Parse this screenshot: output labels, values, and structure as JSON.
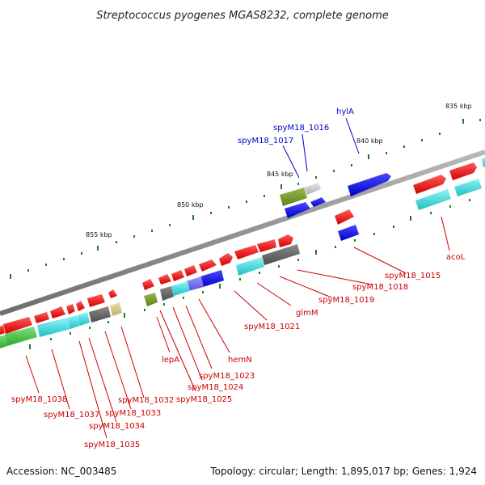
{
  "title": "Streptococcus pyogenes MGAS8232, complete genome",
  "footer": {
    "accession": "Accession: NC_003485",
    "summary": "Topology: circular; Length: 1,895,017 bp; Genes: 1,924"
  },
  "colors": {
    "backbone": "#8a8a8a",
    "tick": "#1f7a1f",
    "label_red": "#cc0000",
    "label_blue": "#0000cc"
  },
  "ticks": [
    {
      "label": "835 kbp",
      "x": 835
    },
    {
      "label": "840 kbp",
      "x": 840
    },
    {
      "label": "845 kbp",
      "x": 845
    },
    {
      "label": "850 kbp",
      "x": 850
    },
    {
      "label": "855 kbp",
      "x": 855
    }
  ],
  "genes": [
    {
      "label": "hylA",
      "color": "blue"
    },
    {
      "label": "spyM18_1016",
      "color": "blue"
    },
    {
      "label": "spyM18_1017",
      "color": "blue"
    },
    {
      "label": "acoL",
      "color": "red"
    },
    {
      "label": "spyM18_1015",
      "color": "red"
    },
    {
      "label": "spyM18_1018",
      "color": "red"
    },
    {
      "label": "spyM18_1019",
      "color": "red"
    },
    {
      "label": "glmM",
      "color": "red"
    },
    {
      "label": "spyM18_1021",
      "color": "red"
    },
    {
      "label": "hemN",
      "color": "red"
    },
    {
      "label": "spyM18_1023",
      "color": "red"
    },
    {
      "label": "spyM18_1024",
      "color": "red"
    },
    {
      "label": "spyM18_1025",
      "color": "red"
    },
    {
      "label": "lepA",
      "color": "red"
    },
    {
      "label": "spyM18_1032",
      "color": "red"
    },
    {
      "label": "spyM18_1033",
      "color": "red"
    },
    {
      "label": "spyM18_1034",
      "color": "red"
    },
    {
      "label": "spyM18_1035",
      "color": "red"
    },
    {
      "label": "spyM18_1037",
      "color": "red"
    },
    {
      "label": "spyM18_1038",
      "color": "red"
    }
  ]
}
